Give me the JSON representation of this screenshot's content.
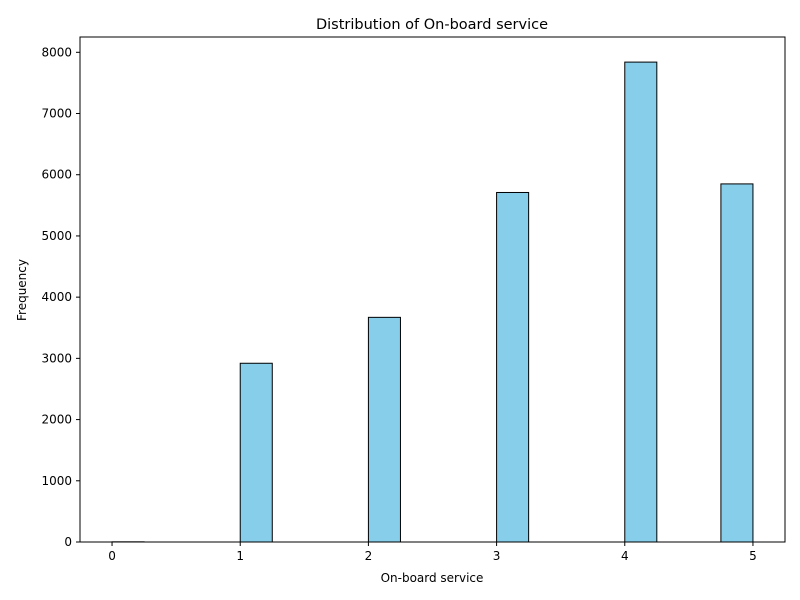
{
  "chart_data": {
    "type": "bar",
    "title": "Distribution of On-board service",
    "xlabel": "On-board service",
    "ylabel": "Frequency",
    "xlim": [
      -0.25,
      5.25
    ],
    "ylim": [
      0,
      8250
    ],
    "xticks": [
      0,
      1,
      2,
      3,
      4,
      5
    ],
    "yticks": [
      0,
      1000,
      2000,
      3000,
      4000,
      5000,
      6000,
      7000,
      8000
    ],
    "bin_width": 0.25,
    "bins": [
      {
        "x0": 0.0,
        "x1": 0.25,
        "value": 3
      },
      {
        "x0": 0.25,
        "x1": 0.5,
        "value": 0
      },
      {
        "x0": 0.5,
        "x1": 0.75,
        "value": 0
      },
      {
        "x0": 0.75,
        "x1": 1.0,
        "value": 0
      },
      {
        "x0": 1.0,
        "x1": 1.25,
        "value": 2920
      },
      {
        "x0": 1.25,
        "x1": 1.5,
        "value": 0
      },
      {
        "x0": 1.5,
        "x1": 1.75,
        "value": 0
      },
      {
        "x0": 1.75,
        "x1": 2.0,
        "value": 0
      },
      {
        "x0": 2.0,
        "x1": 2.25,
        "value": 3670
      },
      {
        "x0": 2.25,
        "x1": 2.5,
        "value": 0
      },
      {
        "x0": 2.5,
        "x1": 2.75,
        "value": 0
      },
      {
        "x0": 2.75,
        "x1": 3.0,
        "value": 0
      },
      {
        "x0": 3.0,
        "x1": 3.25,
        "value": 5710
      },
      {
        "x0": 3.25,
        "x1": 3.5,
        "value": 0
      },
      {
        "x0": 3.5,
        "x1": 3.75,
        "value": 0
      },
      {
        "x0": 3.75,
        "x1": 4.0,
        "value": 0
      },
      {
        "x0": 4.0,
        "x1": 4.25,
        "value": 7840
      },
      {
        "x0": 4.25,
        "x1": 4.5,
        "value": 0
      },
      {
        "x0": 4.5,
        "x1": 4.75,
        "value": 0
      },
      {
        "x0": 4.75,
        "x1": 5.0,
        "value": 5850
      }
    ],
    "grid": false,
    "bar_color": "#87ceeb",
    "edge_color": "#000000"
  }
}
